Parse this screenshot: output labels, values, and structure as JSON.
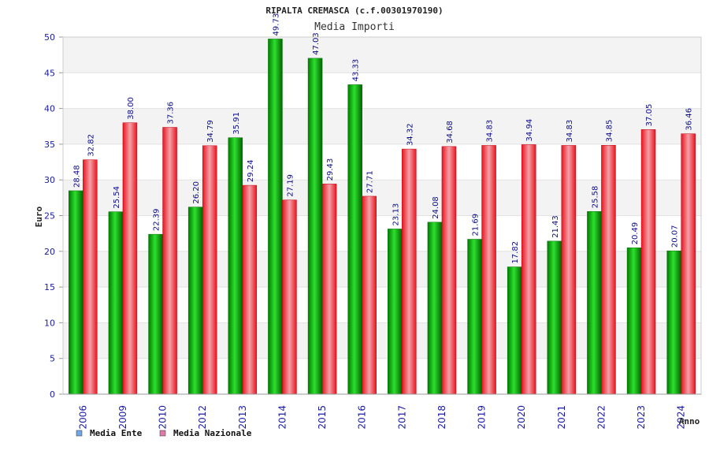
{
  "chart_data": {
    "type": "bar",
    "title": "RIPALTA CREMASCA (c.f.00301970190)",
    "subtitle": "Media Importi",
    "xlabel": "Anno",
    "ylabel": "Euro",
    "ylim": [
      0,
      50
    ],
    "yticks": [
      0,
      5,
      10,
      15,
      20,
      25,
      30,
      35,
      40,
      45,
      50
    ],
    "grid": true,
    "legend_position": "bottom-left",
    "categories": [
      "2006",
      "2009",
      "2010",
      "2012",
      "2013",
      "2014",
      "2015",
      "2016",
      "2017",
      "2018",
      "2019",
      "2020",
      "2021",
      "2022",
      "2023",
      "2024"
    ],
    "series": [
      {
        "name": "Media Ente",
        "color": "#00a000",
        "legend_color": "#6fa8e8",
        "values": [
          28.48,
          25.54,
          22.39,
          26.2,
          35.91,
          49.73,
          47.03,
          43.33,
          23.13,
          24.08,
          21.69,
          17.82,
          21.43,
          25.58,
          20.49,
          20.07
        ],
        "labels": [
          "28.48",
          "25.54",
          "22.39",
          "26.20",
          "35.91",
          "49.73",
          "47.03",
          "43.33",
          "23.13",
          "24.08",
          "21.69",
          "17.82",
          "21.43",
          "25.58",
          "20.49",
          "20.07"
        ]
      },
      {
        "name": "Media Nazionale",
        "color": "#e8141e",
        "legend_color": "#e07aa8",
        "values": [
          32.82,
          38.0,
          37.36,
          34.79,
          29.24,
          27.19,
          29.43,
          27.71,
          34.32,
          34.68,
          34.83,
          34.94,
          34.83,
          34.85,
          37.05,
          36.46
        ],
        "labels": [
          "32.82",
          "38.00",
          "37.36",
          "34.79",
          "29.24",
          "27.19",
          "29.43",
          "27.71",
          "34.32",
          "34.68",
          "34.83",
          "34.94",
          "34.83",
          "34.85",
          "37.05",
          "36.46"
        ]
      }
    ]
  }
}
